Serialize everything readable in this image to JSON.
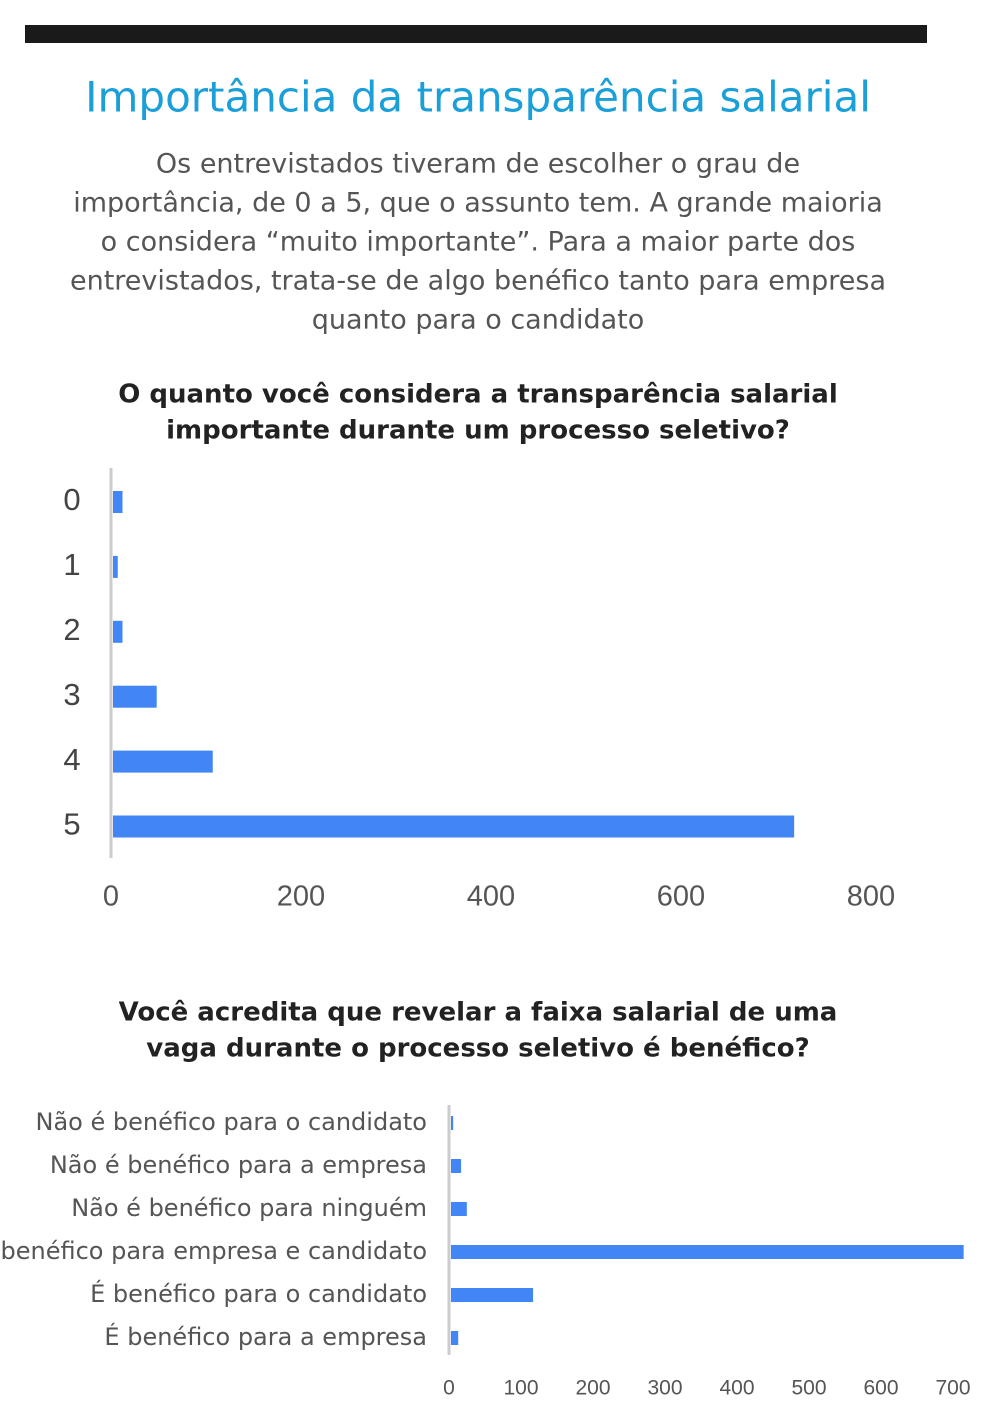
{
  "header": {
    "title": "Importância da transparência salarial",
    "text_lines": [
      "Os entrevistados tiveram de escolher o grau de",
      "importância, de 0 a 5, que o assunto tem. A grande maioria",
      "o considera “muito importante”. Para a maior parte dos",
      "entrevistados, trata-se de algo benéfico tanto para empresa",
      "quanto para o candidato"
    ]
  },
  "chart_data": [
    {
      "type": "hbar",
      "title_lines": [
        "O quanto você considera a transparência salarial",
        "importante durante um processo seletivo?"
      ],
      "categories": [
        "0",
        "1",
        "2",
        "3",
        "4",
        "5"
      ],
      "values": [
        10,
        5,
        10,
        46,
        105,
        717
      ],
      "color": "#4285f4",
      "xlim": [
        0,
        800
      ],
      "xticks": [
        0,
        200,
        400,
        600,
        800
      ]
    },
    {
      "type": "hbar",
      "title_lines": [
        "Você acredita que revelar a faixa salarial de uma",
        "vaga durante o processo seletivo é benéfico?"
      ],
      "categories": [
        "Não é benéfico para o candidato",
        "Não é benéfico para a empresa",
        "Não é benéfico para ninguém",
        "É benéfico para empresa e candidato",
        "É benéfico para o candidato",
        "É benéfico para a empresa"
      ],
      "values": [
        3,
        14,
        22,
        712,
        114,
        10
      ],
      "color": "#4285f4",
      "xlim": [
        0,
        720
      ],
      "xticks": [
        0,
        100,
        200,
        300,
        400,
        500,
        600,
        700
      ]
    }
  ]
}
